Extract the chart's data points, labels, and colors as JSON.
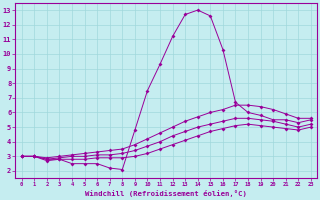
{
  "xlabel": "Windchill (Refroidissement éolien,°C)",
  "xlim": [
    -0.5,
    23.5
  ],
  "ylim": [
    1.5,
    13.5
  ],
  "yticks": [
    2,
    3,
    4,
    5,
    6,
    7,
    8,
    9,
    10,
    11,
    12,
    13
  ],
  "xticks": [
    0,
    1,
    2,
    3,
    4,
    5,
    6,
    7,
    8,
    9,
    10,
    11,
    12,
    13,
    14,
    15,
    16,
    17,
    18,
    19,
    20,
    21,
    22,
    23
  ],
  "bg_color": "#c5edf0",
  "line_color": "#990099",
  "grid_color": "#a0d8dc",
  "lines": [
    {
      "x": [
        0,
        1,
        2,
        3,
        4,
        5,
        6,
        7,
        8,
        9,
        10,
        11,
        12,
        13,
        14,
        15,
        16,
        17,
        18,
        19,
        20,
        21,
        22,
        23
      ],
      "y": [
        3.0,
        3.0,
        2.7,
        2.8,
        2.5,
        2.5,
        2.5,
        2.2,
        2.1,
        4.8,
        7.5,
        9.3,
        11.2,
        12.7,
        13.0,
        12.6,
        10.3,
        6.7,
        6.0,
        5.8,
        5.5,
        5.5,
        5.3,
        5.5
      ]
    },
    {
      "x": [
        0,
        1,
        2,
        3,
        4,
        5,
        6,
        7,
        8,
        9,
        10,
        11,
        12,
        13,
        14,
        15,
        16,
        17,
        18,
        19,
        20,
        21,
        22,
        23
      ],
      "y": [
        3.0,
        3.0,
        2.9,
        3.0,
        3.1,
        3.2,
        3.3,
        3.4,
        3.5,
        3.8,
        4.2,
        4.6,
        5.0,
        5.4,
        5.7,
        6.0,
        6.2,
        6.5,
        6.5,
        6.4,
        6.2,
        5.9,
        5.6,
        5.6
      ]
    },
    {
      "x": [
        0,
        1,
        2,
        3,
        4,
        5,
        6,
        7,
        8,
        9,
        10,
        11,
        12,
        13,
        14,
        15,
        16,
        17,
        18,
        19,
        20,
        21,
        22,
        23
      ],
      "y": [
        3.0,
        3.0,
        2.8,
        2.9,
        3.0,
        3.0,
        3.1,
        3.1,
        3.2,
        3.4,
        3.7,
        4.0,
        4.4,
        4.7,
        5.0,
        5.2,
        5.4,
        5.6,
        5.6,
        5.5,
        5.4,
        5.2,
        5.0,
        5.2
      ]
    },
    {
      "x": [
        0,
        1,
        2,
        3,
        4,
        5,
        6,
        7,
        8,
        9,
        10,
        11,
        12,
        13,
        14,
        15,
        16,
        17,
        18,
        19,
        20,
        21,
        22,
        23
      ],
      "y": [
        3.0,
        3.0,
        2.8,
        2.8,
        2.8,
        2.8,
        2.9,
        2.9,
        2.9,
        3.0,
        3.2,
        3.5,
        3.8,
        4.1,
        4.4,
        4.7,
        4.9,
        5.1,
        5.2,
        5.1,
        5.0,
        4.9,
        4.8,
        5.0
      ]
    }
  ]
}
